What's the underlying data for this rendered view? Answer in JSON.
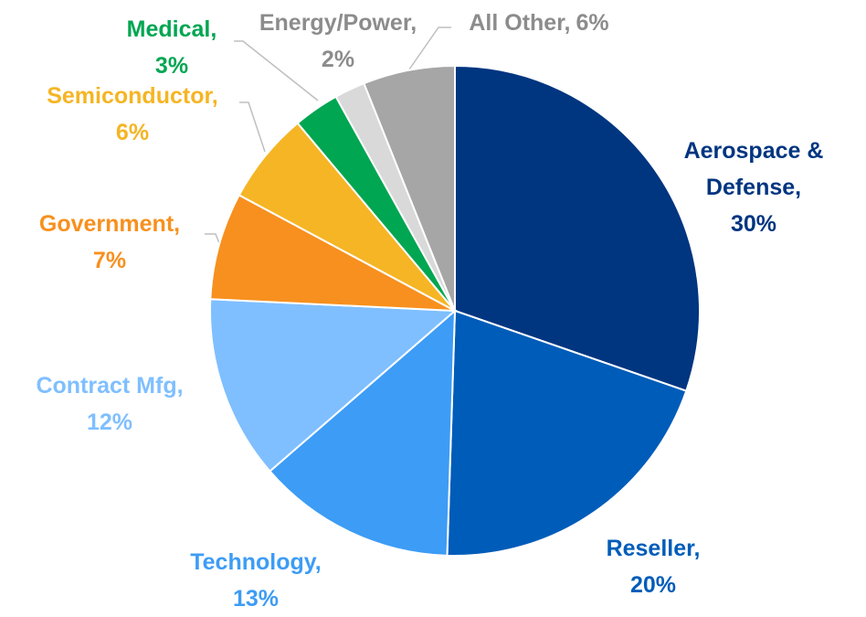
{
  "chart_data": {
    "type": "pie",
    "categories": [
      "Aerospace & Defense,",
      "Reseller,",
      "Technology,",
      "Contract Mfg,",
      "Government,",
      "Semiconductor,",
      "Medical,",
      "Energy/Power,",
      "All Other,"
    ],
    "values": [
      30,
      20,
      13,
      12,
      7,
      6,
      3,
      2,
      6
    ],
    "value_labels": [
      "30%",
      "20%",
      "13%",
      "12%",
      "7%",
      "6%",
      "3%",
      "2%",
      "6%"
    ],
    "colors": [
      "#003580",
      "#005cb9",
      "#3d9cf5",
      "#7fbfff",
      "#f7901e",
      "#f5b524",
      "#00a651",
      "#d9d9d9",
      "#a6a6a6"
    ],
    "label_colors": [
      "#003580",
      "#005cb9",
      "#3d9cf5",
      "#7fbfff",
      "#f7901e",
      "#f5b524",
      "#00a651",
      "#8c8c8c",
      "#8c8c8c"
    ]
  }
}
